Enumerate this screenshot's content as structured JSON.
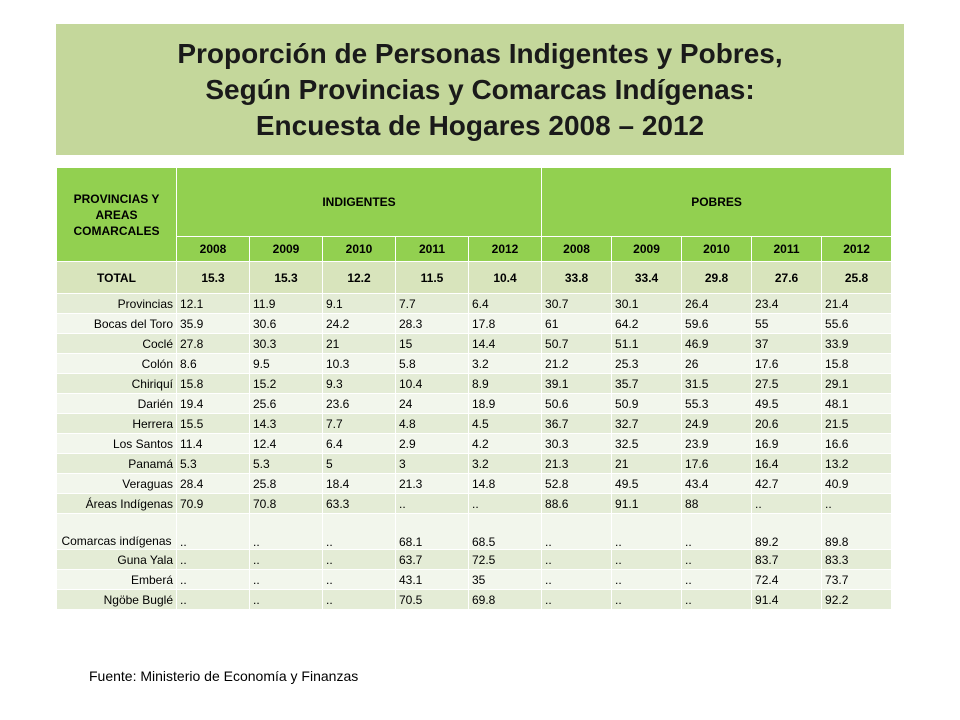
{
  "title": {
    "line1": "Proporción de Personas Indigentes y Pobres,",
    "line2": "Según Provincias y Comarcas Indígenas:",
    "line3": "Encuesta de Hogares 2008 – 2012"
  },
  "table": {
    "header_label": "PROVINCIAS Y AREAS COMARCALES",
    "group_indigentes": "INDIGENTES",
    "group_pobres": "POBRES",
    "years": [
      "2008",
      "2009",
      "2010",
      "2011",
      "2012",
      "2008",
      "2009",
      "2010",
      "2011",
      "2012"
    ],
    "total": {
      "label": "TOTAL",
      "values": [
        "15.3",
        "15.3",
        "12.2",
        "11.5",
        "10.4",
        "33.8",
        "33.4",
        "29.8",
        "27.6",
        "25.8"
      ]
    },
    "rows": [
      {
        "label": "Provincias",
        "values": [
          "12.1",
          "11.9",
          "9.1",
          "7.7",
          "6.4",
          "30.7",
          "30.1",
          "26.4",
          "23.4",
          "21.4"
        ]
      },
      {
        "label": "Bocas del Toro",
        "values": [
          "35.9",
          "30.6",
          "24.2",
          "28.3",
          "17.8",
          "61",
          "64.2",
          "59.6",
          "55",
          "55.6"
        ]
      },
      {
        "label": "Coclé",
        "values": [
          "27.8",
          "30.3",
          "21",
          "15",
          "14.4",
          "50.7",
          "51.1",
          "46.9",
          "37",
          "33.9"
        ]
      },
      {
        "label": "Colón",
        "values": [
          "8.6",
          "9.5",
          "10.3",
          "5.8",
          "3.2",
          "21.2",
          "25.3",
          "26",
          "17.6",
          "15.8"
        ]
      },
      {
        "label": "Chiriquí",
        "values": [
          "15.8",
          "15.2",
          "9.3",
          "10.4",
          "8.9",
          "39.1",
          "35.7",
          "31.5",
          "27.5",
          "29.1"
        ]
      },
      {
        "label": "Darién",
        "values": [
          "19.4",
          "25.6",
          "23.6",
          "24",
          "18.9",
          "50.6",
          "50.9",
          "55.3",
          "49.5",
          "48.1"
        ]
      },
      {
        "label": "Herrera",
        "values": [
          "15.5",
          "14.3",
          "7.7",
          "4.8",
          "4.5",
          "36.7",
          "32.7",
          "24.9",
          "20.6",
          "21.5"
        ]
      },
      {
        "label": "Los Santos",
        "values": [
          "11.4",
          "12.4",
          "6.4",
          "2.9",
          "4.2",
          "30.3",
          "32.5",
          "23.9",
          "16.9",
          "16.6"
        ]
      },
      {
        "label": "Panamá",
        "values": [
          "5.3",
          "5.3",
          "5",
          "3",
          "3.2",
          "21.3",
          "21",
          "17.6",
          "16.4",
          "13.2"
        ]
      },
      {
        "label": "Veraguas",
        "values": [
          "28.4",
          "25.8",
          "18.4",
          "21.3",
          "14.8",
          "52.8",
          "49.5",
          "43.4",
          "42.7",
          "40.9"
        ]
      },
      {
        "label": "Áreas Indígenas",
        "values": [
          "70.9",
          "70.8",
          "63.3",
          "..",
          "..",
          "88.6",
          "91.1",
          "88",
          "..",
          ".."
        ]
      },
      {
        "label": "Comarcas indígenas",
        "values": [
          "..",
          "..",
          "..",
          "68.1",
          "68.5",
          "..",
          "..",
          "..",
          "89.2",
          "89.8"
        ]
      },
      {
        "label": "Guna Yala",
        "values": [
          "..",
          "..",
          "..",
          "63.7",
          "72.5",
          "..",
          "..",
          "..",
          "83.7",
          "83.3"
        ]
      },
      {
        "label": "Emberá",
        "values": [
          "..",
          "..",
          "..",
          "43.1",
          "35",
          "..",
          "..",
          "..",
          "72.4",
          "73.7"
        ]
      },
      {
        "label": "Ngöbe Buglé",
        "values": [
          "..",
          "..",
          "..",
          "70.5",
          "69.8",
          "..",
          "..",
          "..",
          "91.4",
          "92.2"
        ]
      }
    ]
  },
  "source": "Fuente: Ministerio de Economía y Finanzas",
  "colors": {
    "title_bg": "#c4d79b",
    "header_bg": "#92d050",
    "total_bg": "#d8e4bc",
    "row_odd_bg": "#e4ecd6",
    "row_even_bg": "#f2f6ec"
  }
}
